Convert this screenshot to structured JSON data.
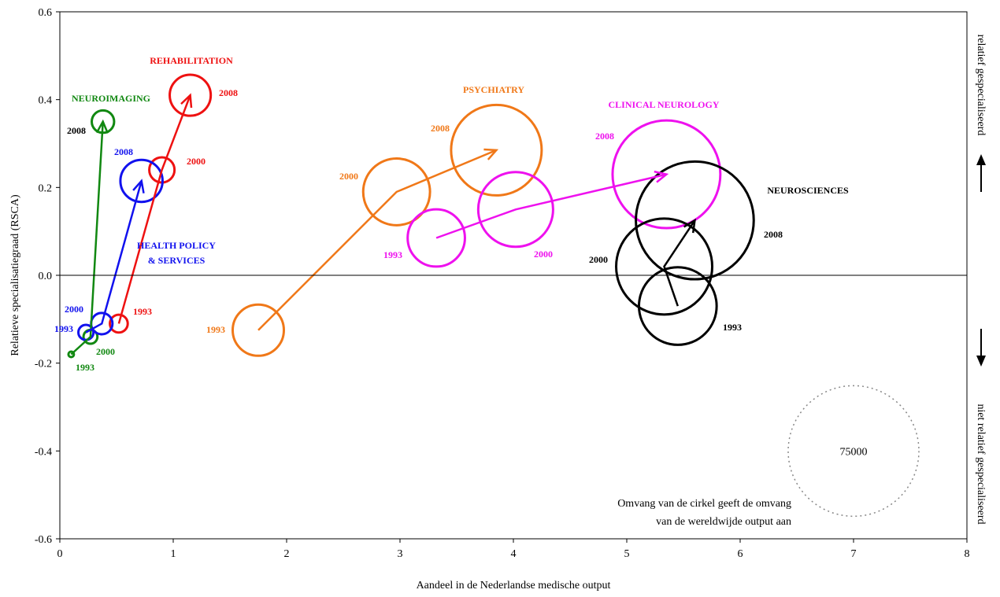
{
  "chart_data": {
    "type": "scatter",
    "subtype": "bubble-trajectory",
    "xlabel": "Aandeel in de Nederlandse medische output",
    "ylabel": "Relatieve specialisatiegraad (RSCA)",
    "right_label_top": "relatief gespecialiseerd",
    "right_label_bottom": "niet relatief gespecialiseerd",
    "xlim": [
      0,
      8
    ],
    "ylim": [
      -0.6,
      0.6
    ],
    "x_ticks": [
      "0",
      "1",
      "2",
      "3",
      "4",
      "5",
      "6",
      "7",
      "8"
    ],
    "y_ticks": [
      "0.6",
      "0.4",
      "0.2",
      "0.0",
      "-0.2",
      "-0.4",
      "-0.6"
    ],
    "grid": false,
    "size_legend": {
      "value": "75000",
      "x": 7.0,
      "y": -0.4,
      "note_line1": "Omvang van de cirkel geeft de omvang",
      "note_line2": "van de wereldwijde output aan"
    },
    "series": [
      {
        "name": "REHABILITATION",
        "color": "#ee1111",
        "points": [
          {
            "year": "1993",
            "x": 0.52,
            "y": -0.11,
            "size": 1400
          },
          {
            "year": "2000",
            "x": 0.9,
            "y": 0.24,
            "size": 2800
          },
          {
            "year": "2008",
            "x": 1.15,
            "y": 0.41,
            "size": 7400
          }
        ]
      },
      {
        "name": "NEUROIMAGING",
        "color": "#118811",
        "points": [
          {
            "year": "1993",
            "x": 0.1,
            "y": -0.18,
            "size": 130
          },
          {
            "year": "2000",
            "x": 0.27,
            "y": -0.14,
            "size": 850
          },
          {
            "year": "2008",
            "x": 0.38,
            "y": 0.35,
            "size": 2200
          }
        ]
      },
      {
        "name": "HEALTH POLICY & SERVICES",
        "color": "#1111ee",
        "points": [
          {
            "year": "1993",
            "x": 0.23,
            "y": -0.13,
            "size": 1000
          },
          {
            "year": "2000",
            "x": 0.37,
            "y": -0.11,
            "size": 2000
          },
          {
            "year": "2008",
            "x": 0.72,
            "y": 0.215,
            "size": 7800
          }
        ]
      },
      {
        "name": "PSYCHIATRY",
        "color": "#f07818",
        "points": [
          {
            "year": "1993",
            "x": 1.75,
            "y": -0.125,
            "size": 11500
          },
          {
            "year": "2000",
            "x": 2.97,
            "y": 0.19,
            "size": 19600
          },
          {
            "year": "2008",
            "x": 3.85,
            "y": 0.285,
            "size": 36000
          }
        ]
      },
      {
        "name": "CLINICAL NEUROLOGY",
        "color": "#ee11ee",
        "points": [
          {
            "year": "1993",
            "x": 3.32,
            "y": 0.085,
            "size": 14400
          },
          {
            "year": "2000",
            "x": 4.02,
            "y": 0.15,
            "size": 24600
          },
          {
            "year": "2008",
            "x": 5.35,
            "y": 0.23,
            "size": 51000
          }
        ]
      },
      {
        "name": "NEUROSCIENCES",
        "color": "#000000",
        "points": [
          {
            "year": "1993",
            "x": 5.45,
            "y": -0.07,
            "size": 26500
          },
          {
            "year": "2000",
            "x": 5.33,
            "y": 0.02,
            "size": 40500
          },
          {
            "year": "2008",
            "x": 5.6,
            "y": 0.125,
            "size": 61000
          }
        ]
      }
    ]
  }
}
